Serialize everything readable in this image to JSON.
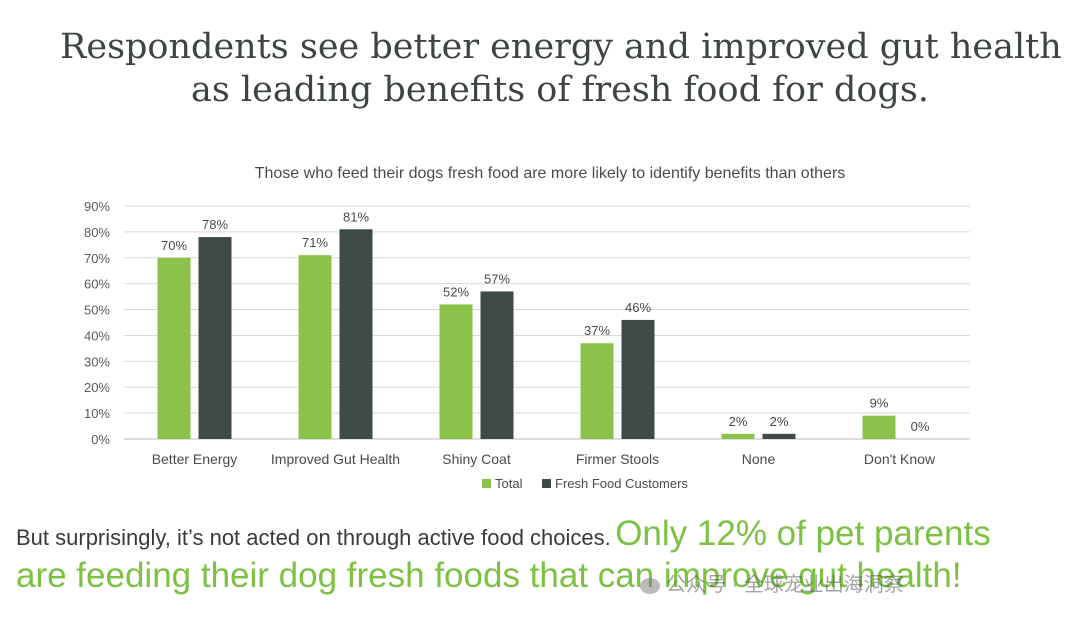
{
  "headline": {
    "line1": "Respondents see better energy and improved gut health",
    "line2": "as leading benefits of fresh food for dogs."
  },
  "chart_data": {
    "type": "bar",
    "title": "Those who feed their dogs fresh food are more likely to identify benefits than others",
    "categories": [
      "Better Energy",
      "Improved Gut Health",
      "Shiny Coat",
      "Firmer Stools",
      "None",
      "Don't Know"
    ],
    "series": [
      {
        "name": "Total",
        "color": "#8bc34a",
        "values": [
          70,
          71,
          52,
          37,
          2,
          9
        ],
        "labels": [
          "70%",
          "71%",
          "52%",
          "37%",
          "2%",
          "9%"
        ]
      },
      {
        "name": "Fresh Food Customers",
        "color": "#3e4a46",
        "values": [
          78,
          81,
          57,
          46,
          2,
          0
        ],
        "labels": [
          "78%",
          "81%",
          "57%",
          "46%",
          "2%",
          "0%"
        ]
      }
    ],
    "ylim": [
      0,
      90
    ],
    "yticks": [
      "0%",
      "10%",
      "20%",
      "30%",
      "40%",
      "50%",
      "60%",
      "70%",
      "80%",
      "90%"
    ],
    "grid": true,
    "legend": "bottom"
  },
  "bottom": {
    "plain": "But surprisingly, it’s not acted on through active food choices.",
    "highlight1": "Only 12% of pet parents",
    "highlight2": "are feeding their dog fresh foods that can improve gut health!"
  },
  "watermark": {
    "text": "公众号 · 全球宠业出海洞察"
  }
}
